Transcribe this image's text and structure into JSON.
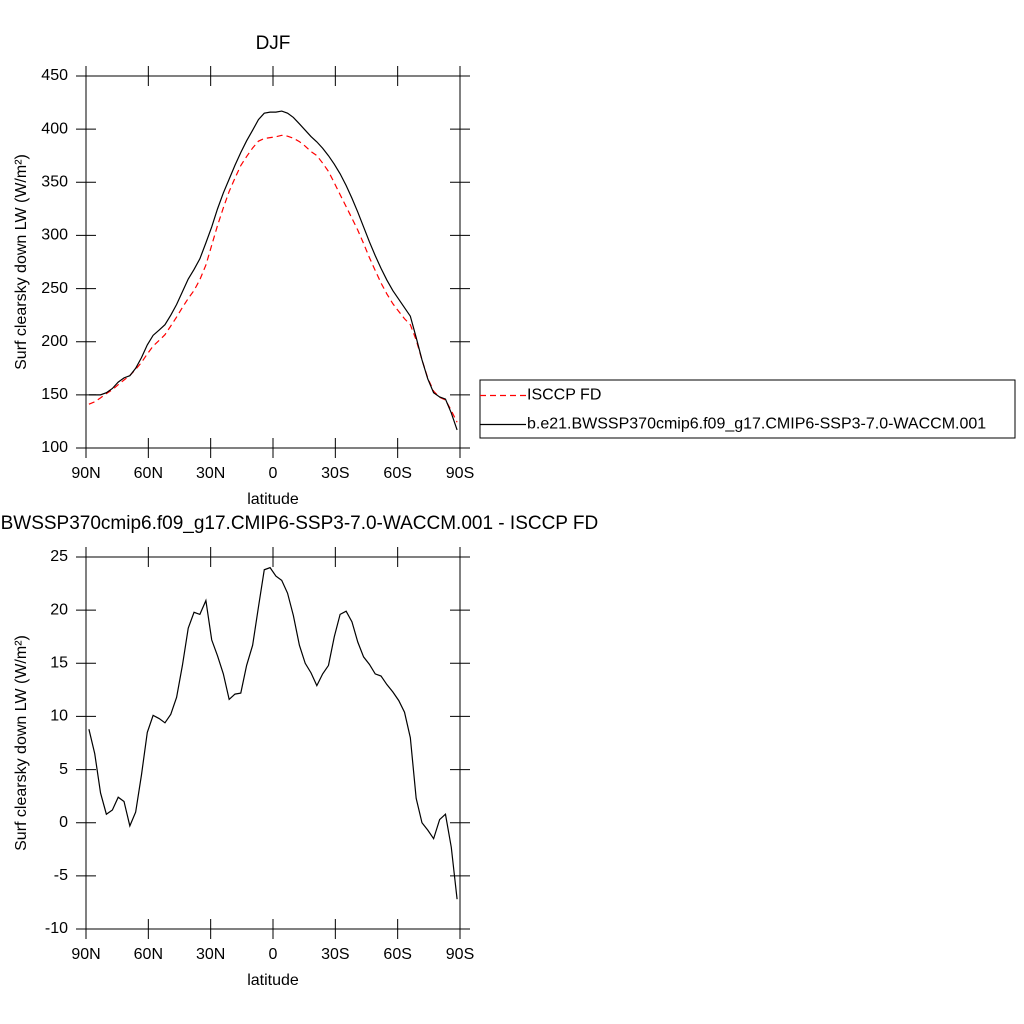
{
  "chart_data": [
    {
      "type": "line",
      "title": "DJF",
      "xlabel": "latitude",
      "ylabel": "Surf clearsky down LW (W/m²)",
      "x": [
        88.6,
        85.8,
        83.0,
        80.2,
        77.3,
        74.5,
        71.7,
        68.9,
        66.1,
        63.3,
        60.5,
        57.7,
        54.8,
        52.0,
        49.2,
        46.4,
        43.6,
        40.8,
        38.0,
        35.2,
        32.3,
        29.5,
        26.7,
        23.9,
        21.1,
        18.3,
        15.5,
        12.7,
        9.8,
        7.0,
        4.2,
        1.4,
        -1.4,
        -4.2,
        -7.0,
        -9.8,
        -12.7,
        -15.5,
        -18.3,
        -21.1,
        -23.9,
        -26.7,
        -29.5,
        -32.3,
        -35.2,
        -38.0,
        -40.8,
        -43.6,
        -46.4,
        -49.2,
        -52.0,
        -54.8,
        -57.7,
        -60.5,
        -63.3,
        -66.1,
        -68.9,
        -71.7,
        -74.5,
        -77.3,
        -80.2,
        -83.0,
        -85.8,
        -88.6
      ],
      "series": [
        {
          "name": "ISCCP FD",
          "color": "#ff0000",
          "dash": "dashed",
          "values": [
            141.2,
            143.5,
            147.2,
            151.2,
            154.8,
            159.6,
            164,
            168.3,
            174,
            180.5,
            188.5,
            195.9,
            201.2,
            206.6,
            214.8,
            223.2,
            232.2,
            240.7,
            248.2,
            258.4,
            272.1,
            290.8,
            309.3,
            326,
            341.4,
            353.9,
            365.8,
            374.2,
            382.3,
            388.7,
            391.2,
            392,
            392.8,
            394.2,
            393.4,
            391.5,
            388.3,
            384,
            378.9,
            375.1,
            368,
            360.2,
            349.5,
            338.4,
            327.1,
            316.1,
            305,
            292.4,
            279.1,
            267,
            255.2,
            245,
            235.7,
            228.5,
            221.6,
            216,
            201.7,
            183,
            165.7,
            153.5,
            147.7,
            145.2,
            135.3,
            124.2
          ]
        },
        {
          "name": "b.e21.BWSSP370cmip6.f09_g17.CMIP6-SSP3-7.0-WACCM.001",
          "color": "#000000",
          "dash": "solid",
          "values": [
            150,
            150,
            150,
            152,
            156,
            162,
            166,
            168,
            175,
            185,
            197,
            206,
            211,
            216,
            225,
            235,
            247,
            259,
            268,
            278,
            293,
            308,
            325,
            340,
            353,
            366,
            378,
            389,
            399,
            409,
            415,
            416,
            416,
            417,
            415,
            411,
            405,
            399,
            393,
            388,
            382,
            375,
            367,
            358,
            347,
            335,
            322,
            308,
            294,
            281,
            269,
            258,
            248,
            240,
            232,
            224,
            204,
            183,
            165,
            152,
            148,
            146,
            133,
            117
          ]
        }
      ],
      "xlim": [
        90,
        -90
      ],
      "xticks": [
        {
          "value": 90,
          "label": "90N"
        },
        {
          "value": 60,
          "label": "60N"
        },
        {
          "value": 30,
          "label": "30N"
        },
        0,
        {
          "value": -30,
          "label": "30S"
        },
        {
          "value": -60,
          "label": "60S"
        },
        {
          "value": -90,
          "label": "90S"
        }
      ],
      "ylim": [
        100,
        450
      ],
      "yticks": [
        100,
        150,
        200,
        250,
        300,
        350,
        400,
        450
      ],
      "legend": "right"
    },
    {
      "type": "line",
      "title": "b.e21.BWSSP370cmip6.f09_g17.CMIP6-SSP3-7.0-WACCM.001 - ISCCP FD",
      "xlabel": "latitude",
      "ylabel": "Surf clearsky down LW (W/m²)",
      "x": [
        88.6,
        85.8,
        83.0,
        80.2,
        77.3,
        74.5,
        71.7,
        68.9,
        66.1,
        63.3,
        60.5,
        57.7,
        54.8,
        52.0,
        49.2,
        46.4,
        43.6,
        40.8,
        38.0,
        35.2,
        32.3,
        29.5,
        26.7,
        23.9,
        21.1,
        18.3,
        15.5,
        12.7,
        9.8,
        7.0,
        4.2,
        1.4,
        -1.4,
        -4.2,
        -7.0,
        -9.8,
        -12.7,
        -15.5,
        -18.3,
        -21.1,
        -23.9,
        -26.7,
        -29.5,
        -32.3,
        -35.2,
        -38.0,
        -40.8,
        -43.6,
        -46.4,
        -49.2,
        -52.0,
        -54.8,
        -57.7,
        -60.5,
        -63.3,
        -66.1,
        -68.9,
        -71.7,
        -74.5,
        -77.3,
        -80.2,
        -83.0,
        -85.8,
        -88.6
      ],
      "values": [
        8.8,
        6.5,
        2.8,
        0.8,
        1.2,
        2.4,
        2.0,
        -0.3,
        1.0,
        4.5,
        8.5,
        10.1,
        9.8,
        9.4,
        10.2,
        11.8,
        14.8,
        18.3,
        19.8,
        19.6,
        20.9,
        17.2,
        15.7,
        14.0,
        11.6,
        12.1,
        12.2,
        14.8,
        16.7,
        20.3,
        23.8,
        24.0,
        23.2,
        22.8,
        21.6,
        19.5,
        16.7,
        15.0,
        14.1,
        12.9,
        14.0,
        14.8,
        17.5,
        19.6,
        19.9,
        18.9,
        17.0,
        15.6,
        14.9,
        14.0,
        13.8,
        13.0,
        12.3,
        11.5,
        10.4,
        8.0,
        2.3,
        0.0,
        -0.7,
        -1.5,
        0.3,
        0.8,
        -2.3,
        -7.2
      ],
      "color": "#000000",
      "xlim": [
        90,
        -90
      ],
      "xticks": [
        {
          "value": 90,
          "label": "90N"
        },
        {
          "value": 60,
          "label": "60N"
        },
        {
          "value": 30,
          "label": "30N"
        },
        0,
        {
          "value": -30,
          "label": "30S"
        },
        {
          "value": -60,
          "label": "60S"
        },
        {
          "value": -90,
          "label": "90S"
        }
      ],
      "ylim": [
        -10,
        25
      ],
      "yticks": [
        -10,
        -5,
        0,
        5,
        10,
        15,
        20,
        25
      ]
    }
  ]
}
